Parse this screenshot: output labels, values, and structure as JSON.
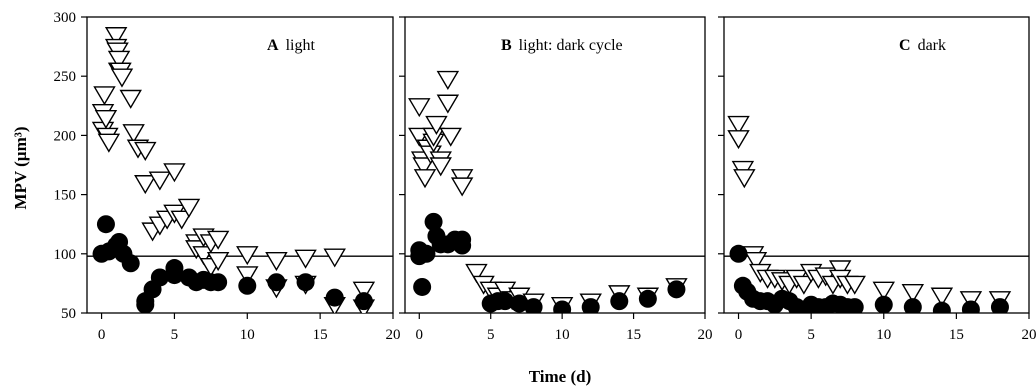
{
  "chart_data": {
    "type": "scatter",
    "ylabel": "MPV (µm³)",
    "xlabel": "Time (d)",
    "ylim": [
      50,
      300
    ],
    "yticks": [
      "50",
      "100",
      "150",
      "200",
      "250",
      "300"
    ],
    "xticks": [
      "0",
      "5",
      "10",
      "15",
      "20"
    ],
    "reference_line": 98,
    "colors": {
      "open": "#ffffff",
      "filled": "#000000",
      "stroke": "#000000"
    },
    "panels": [
      {
        "letter": "A",
        "label": "light",
        "xlim": [
          -1,
          20
        ],
        "series": [
          {
            "marker": "open-triangle-down",
            "x": [
              0.1,
              0.1,
              0.2,
              0.3,
              0.4,
              0.5,
              1,
              1,
              1.1,
              1.2,
              1.2,
              1.3,
              1.4,
              2,
              2.2,
              2.5,
              3,
              3,
              3.5,
              4,
              4,
              4.5,
              5,
              5,
              5.5,
              6,
              6.5,
              6.5,
              7,
              7,
              7.5,
              7.5,
              8,
              8,
              10,
              10,
              12,
              12,
              14,
              14,
              16,
              16,
              18,
              18
            ],
            "y": [
              220,
              205,
              235,
              215,
              200,
              195,
              285,
              275,
              272,
              265,
              255,
              255,
              250,
              232,
              203,
              190,
              188,
              160,
              120,
              163,
              125,
              130,
              170,
              135,
              130,
              140,
              110,
              105,
              115,
              100,
              110,
              90,
              113,
              95,
              100,
              83,
              95,
              72,
              97,
              75,
              98,
              57,
              70,
              55
            ]
          },
          {
            "marker": "filled-circle",
            "x": [
              0,
              0.3,
              0.5,
              1,
              1.2,
              1.5,
              2,
              3,
              3,
              3.5,
              4,
              5,
              5,
              6,
              6.5,
              7,
              7.5,
              8,
              10,
              12,
              14,
              16,
              18
            ],
            "y": [
              100,
              125,
              102,
              107,
              110,
              100,
              92,
              60,
              57,
              70,
              80,
              88,
              82,
              80,
              76,
              78,
              76,
              76,
              73,
              76,
              76,
              63,
              60
            ]
          }
        ]
      },
      {
        "letter": "B",
        "label": "light: dark cycle",
        "xlim": [
          -1,
          20
        ],
        "series": [
          {
            "marker": "open-triangle-down",
            "x": [
              0,
              0,
              0.2,
              0.3,
              0.4,
              0.6,
              0.8,
              1,
              1,
              1.2,
              1.5,
              1.5,
              2,
              2,
              2.2,
              3,
              3,
              4,
              4.5,
              5,
              5.5,
              6,
              6.5,
              7,
              8,
              10,
              12,
              14,
              16,
              18
            ],
            "y": [
              225,
              200,
              180,
              175,
              165,
              190,
              185,
              195,
              200,
              210,
              180,
              175,
              248,
              228,
              200,
              165,
              158,
              85,
              75,
              70,
              65,
              70,
              62,
              65,
              60,
              57,
              60,
              67,
              65,
              73
            ]
          },
          {
            "marker": "filled-circle",
            "x": [
              0,
              0,
              0.2,
              0.5,
              1,
              1.2,
              1.5,
              2,
              2.5,
              3,
              3,
              5,
              5.5,
              6,
              7,
              8,
              10,
              12,
              14,
              16,
              18
            ],
            "y": [
              103,
              98,
              72,
              100,
              127,
              115,
              108,
              108,
              112,
              112,
              107,
              58,
              60,
              60,
              58,
              55,
              53,
              55,
              60,
              62,
              70
            ]
          }
        ]
      },
      {
        "letter": "C",
        "label": "dark",
        "xlim": [
          -1,
          20
        ],
        "series": [
          {
            "marker": "open-triangle-down",
            "x": [
              0,
              0,
              0.3,
              0.4,
              1,
              1.2,
              1.5,
              2,
              2.5,
              3,
              3.5,
              4,
              4.5,
              5,
              5.5,
              6,
              6.5,
              7,
              7,
              7.5,
              8,
              10,
              12,
              14,
              16,
              18
            ],
            "y": [
              210,
              198,
              172,
              165,
              100,
              95,
              85,
              80,
              80,
              78,
              75,
              80,
              75,
              85,
              80,
              82,
              75,
              88,
              80,
              75,
              75,
              70,
              68,
              65,
              62,
              62
            ]
          },
          {
            "marker": "filled-circle",
            "x": [
              0,
              0.3,
              0.6,
              1,
              1.5,
              2,
              2.5,
              3,
              3.5,
              4,
              4.5,
              5,
              5.5,
              6,
              6.5,
              7,
              7.5,
              8,
              10,
              12,
              14,
              16,
              18
            ],
            "y": [
              100,
              73,
              68,
              62,
              60,
              60,
              57,
              62,
              60,
              55,
              53,
              57,
              55,
              55,
              58,
              57,
              55,
              55,
              57,
              55,
              52,
              53,
              55
            ]
          }
        ]
      }
    ]
  }
}
